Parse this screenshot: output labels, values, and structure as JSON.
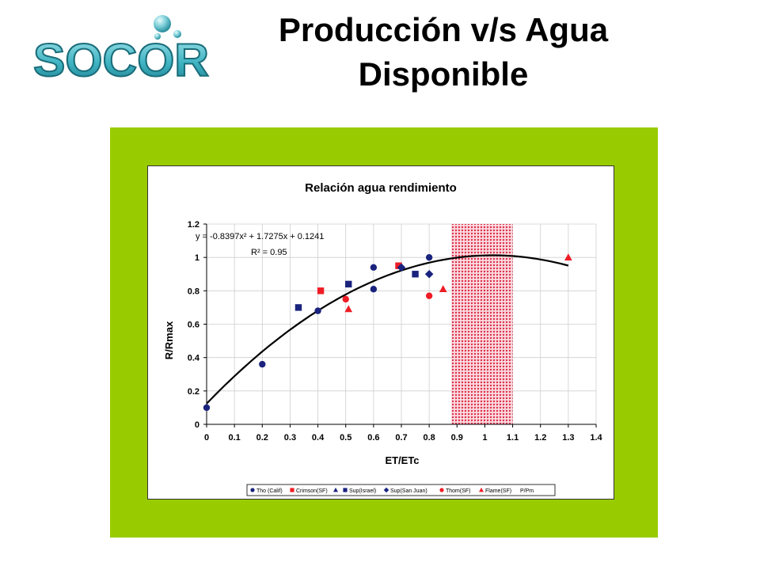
{
  "slide": {
    "title_line1": "Producción v/s Agua",
    "title_line2": "Disponible",
    "panel_color": "#99cc00"
  },
  "logo": {
    "text": "SOCOR"
  },
  "chart_data": {
    "type": "scatter",
    "title": "Relación agua rendimiento",
    "xlabel": "ET/ETc",
    "ylabel": "R/Rmax",
    "xlim": [
      0,
      1.4
    ],
    "ylim": [
      0,
      1.2
    ],
    "xticks": [
      "0",
      "0.1",
      "0.2",
      "0.3",
      "0.4",
      "0.5",
      "0.6",
      "0.7",
      "0.8",
      "0.9",
      "1",
      "1.1",
      "1.2",
      "1.3",
      "1.4"
    ],
    "yticks": [
      "0",
      "0.2",
      "0.4",
      "0.6",
      "0.8",
      "1",
      "1.2"
    ],
    "grid": true,
    "trendline": {
      "equation": "y = -0.8397x² + 1.7275x + 0.1241",
      "r2": "R² = 0.95",
      "a": -0.8397,
      "b": 1.7275,
      "c": 0.1241,
      "x_range": [
        0,
        1.3
      ]
    },
    "shaded_band": {
      "x_from": 0.88,
      "x_to": 1.1,
      "color": "#e0102a"
    },
    "series": [
      {
        "name": "Tho (Calif)",
        "marker": "circle",
        "color": "#1a237e",
        "points": [
          [
            0,
            0.1
          ],
          [
            0.2,
            0.36
          ],
          [
            0.4,
            0.68
          ],
          [
            0.6,
            0.94
          ],
          [
            0.6,
            0.81
          ],
          [
            0.8,
            1.0
          ]
        ]
      },
      {
        "name": "Crimson(SF)",
        "marker": "square",
        "color": "#ee1c25",
        "points": [
          [
            0.41,
            0.8
          ],
          [
            0.69,
            0.95
          ]
        ]
      },
      {
        "name": "Sup(Israel)",
        "marker": "square",
        "color": "#1a237e",
        "points": [
          [
            0.33,
            0.7
          ],
          [
            0.51,
            0.84
          ],
          [
            0.75,
            0.9
          ]
        ]
      },
      {
        "name": "Sup(San Juan)",
        "marker": "diamond",
        "color": "#1a237e",
        "points": [
          [
            0.7,
            0.94
          ],
          [
            0.8,
            0.9
          ]
        ]
      },
      {
        "name": "Thom(SF)",
        "marker": "circle",
        "color": "#ee1c25",
        "points": [
          [
            0.5,
            0.75
          ],
          [
            0.8,
            0.77
          ]
        ]
      },
      {
        "name": "Flame(SF)",
        "marker": "triangle",
        "color": "#ee1c25",
        "points": [
          [
            0.51,
            0.69
          ],
          [
            0.85,
            0.81
          ],
          [
            1.3,
            1.0
          ]
        ]
      }
    ],
    "legend": {
      "placement": "bottom",
      "entries": [
        {
          "label": "Tho (Calif)",
          "marker": "circle",
          "color": "#1a237e"
        },
        {
          "label": "Crimson(SF)",
          "marker": "square",
          "color": "#ee1c25"
        },
        {
          "label": "",
          "marker": "triangle",
          "color": "#1a237e"
        },
        {
          "label": "Sup(Israel)",
          "marker": "square",
          "color": "#1a237e"
        },
        {
          "label": "Sup(San Juan)",
          "marker": "diamond",
          "color": "#1a237e"
        },
        {
          "label": "Thom(SF)",
          "marker": "circle",
          "color": "#ee1c25"
        },
        {
          "label": "Flame(SF)",
          "marker": "triangle",
          "color": "#ee1c25"
        },
        {
          "label": "P/Pm",
          "marker": "none",
          "color": "#000000"
        }
      ]
    }
  }
}
